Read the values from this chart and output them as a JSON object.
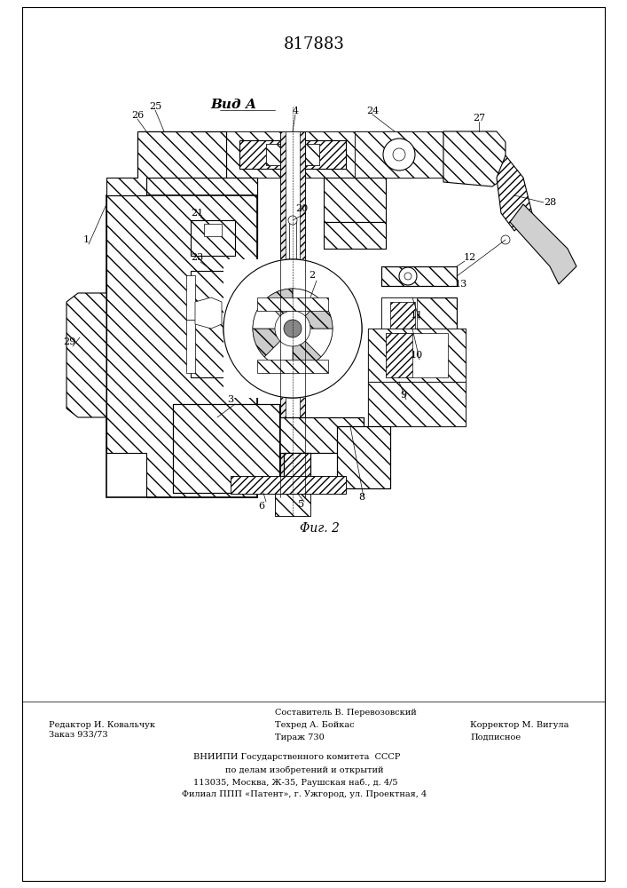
{
  "patent_number": "817883",
  "background_color": "#ffffff",
  "line_color": "#000000",
  "footer_text_left": "Редактор И. Ковальчук\nЗаказ 933/73",
  "footer_text_center_line1": "Составитель В. Перевозовский",
  "footer_text_center_line2": "Техред А. Бойкас",
  "footer_text_center_line3": "Тираж 730",
  "footer_text_right_line1": "Корректор М. Вигула",
  "footer_text_right_line2": "Подписное",
  "footer_vniiipi_line1": "ВНИИПИ Государственного комитета  СССР",
  "footer_vniiipi_line2": "по делам изобретений и открытий",
  "footer_vniiipi_line3": "113035, Москва, Ж-35, Раушская наб., д. 4/5",
  "footer_vniiipi_line4": "Филиал ППП «Патент», г. Ужгород, ул. Проектная, 4",
  "view_label": "Вид А",
  "fig_label": "Φиг. 2"
}
